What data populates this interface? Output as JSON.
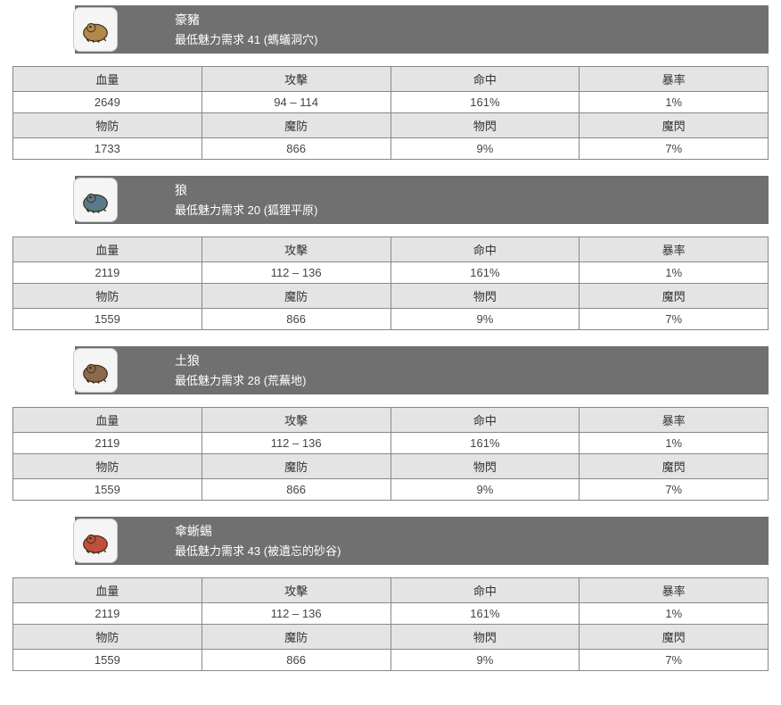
{
  "labels": {
    "charm_prefix": "最低魅力需求 "
  },
  "stat_headers_1": [
    "血量",
    "攻擊",
    "命中",
    "暴率"
  ],
  "stat_headers_2": [
    "物防",
    "魔防",
    "物閃",
    "魔閃"
  ],
  "colors": {
    "header_bg": "#707070",
    "header_text": "#ffffff",
    "row_header_bg": "#e4e4e4",
    "row_value_bg": "#ffffff",
    "border": "#888888",
    "text": "#444444",
    "avatar_bg": "#f5f5f5",
    "avatar_border": "#c8c8c8"
  },
  "creatures": [
    {
      "name": "豪豬",
      "charm_req": "41",
      "location": "螞蟻洞穴",
      "icon_color": "#b08a4a",
      "stats1": [
        "2649",
        "94 – 114",
        "161%",
        "1%"
      ],
      "stats2": [
        "1733",
        "866",
        "9%",
        "7%"
      ]
    },
    {
      "name": "狼",
      "charm_req": "20",
      "location": "狐狸平原",
      "icon_color": "#5a7a8a",
      "stats1": [
        "2119",
        "112 – 136",
        "161%",
        "1%"
      ],
      "stats2": [
        "1559",
        "866",
        "9%",
        "7%"
      ]
    },
    {
      "name": "土狼",
      "charm_req": "28",
      "location": "荒蕪地",
      "icon_color": "#8a6a4a",
      "stats1": [
        "2119",
        "112 – 136",
        "161%",
        "1%"
      ],
      "stats2": [
        "1559",
        "866",
        "9%",
        "7%"
      ]
    },
    {
      "name": "傘蜥蜴",
      "charm_req": "43",
      "location": "被遺忘的砂谷",
      "icon_color": "#c0503a",
      "stats1": [
        "2119",
        "112 – 136",
        "161%",
        "1%"
      ],
      "stats2": [
        "1559",
        "866",
        "9%",
        "7%"
      ]
    }
  ]
}
